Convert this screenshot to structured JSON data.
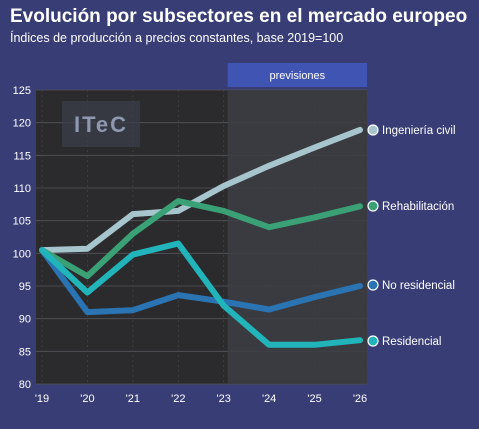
{
  "chart_data": {
    "type": "line",
    "title": "Evolución por subsectores en el mercado europeo",
    "subtitle": "Índices de producción a precios constantes, base 2019=100",
    "x": [
      "'19",
      "'20",
      "'21",
      "'22",
      "'23",
      "'24",
      "'25",
      "'26"
    ],
    "yticks": [
      "125",
      "120",
      "115",
      "110",
      "105",
      "100",
      "95",
      "90",
      "85",
      "80"
    ],
    "ylim": [
      80,
      125
    ],
    "forecast_label": "previsiones",
    "forecast_from": "'23",
    "logo_text": "ITeC",
    "series": [
      {
        "name": "Ingeniería civil",
        "color": "#a6c5cc",
        "values": [
          100.5,
          100.7,
          106.0,
          106.5,
          110.3,
          113.4,
          116.2,
          118.9
        ]
      },
      {
        "name": "Rehabilitación",
        "color": "#3aa176",
        "values": [
          100.5,
          96.5,
          103.0,
          108.0,
          106.5,
          104.0,
          105.5,
          107.2
        ]
      },
      {
        "name": "No residencial",
        "color": "#2a74b4",
        "values": [
          100.5,
          91.0,
          91.3,
          93.6,
          92.6,
          91.4,
          93.3,
          95.0
        ]
      },
      {
        "name": "Residencial",
        "color": "#22b4bb",
        "values": [
          100.5,
          94.0,
          99.8,
          101.5,
          92.0,
          86.0,
          86.0,
          86.7
        ]
      }
    ],
    "grid": true,
    "legend": "end-of-line labels on the right"
  }
}
